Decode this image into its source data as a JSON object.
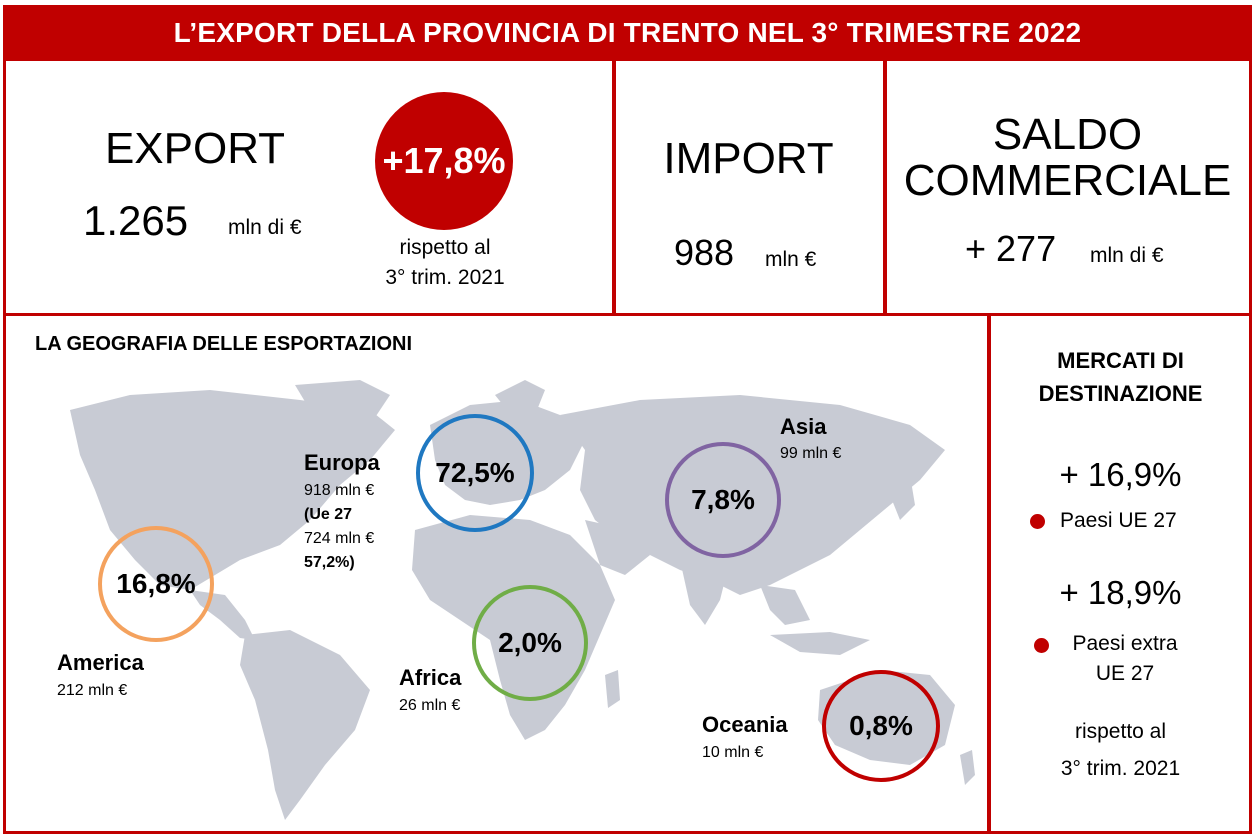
{
  "title": "L’EXPORT DELLA PROVINCIA DI TRENTO NEL 3° TRIMESTRE 2022",
  "export": {
    "label": "EXPORT",
    "value": "1.265",
    "unit": "mln di €",
    "change": "+17,8%",
    "comparison_line1": "rispetto al",
    "comparison_line2": "3° trim. 2021"
  },
  "import": {
    "label": "IMPORT",
    "value": "988",
    "unit": "mln €"
  },
  "saldo": {
    "label_line1": "SALDO",
    "label_line2": "COMMERCIALE",
    "value": "+ 277",
    "unit": "mln di €"
  },
  "geography": {
    "title": "LA GEOGRAFIA DELLE ESPORTAZIONI",
    "regions": {
      "america": {
        "name": "America",
        "value": "212 mln €",
        "share": "16,8%",
        "color": "#f4a25e"
      },
      "europa": {
        "name": "Europa",
        "value": "918 mln €",
        "ue_line1": "(Ue 27",
        "ue_line2": "724 mln €",
        "ue_line3": "57,2%)",
        "share": "72,5%",
        "color": "#1f78c1"
      },
      "asia": {
        "name": "Asia",
        "value": "99 mln €",
        "share": "7,8%",
        "color": "#8064a2"
      },
      "africa": {
        "name": "Africa",
        "value": "26 mln €",
        "share": "2,0%",
        "color": "#70ad47"
      },
      "oceania": {
        "name": "Oceania",
        "value": "10 mln €",
        "share": "0,8%",
        "color": "#c00000"
      }
    }
  },
  "markets": {
    "title_line1": "MERCATI DI",
    "title_line2": "DESTINAZIONE",
    "ue": {
      "change": "+ 16,9%",
      "label": "Paesi UE 27"
    },
    "extra_ue": {
      "change": "+ 18,9%",
      "label_line1": "Paesi extra",
      "label_line2": "UE 27"
    },
    "comparison_line1": "rispetto al",
    "comparison_line2": "3° trim. 2021"
  },
  "colors": {
    "accent": "#c00000",
    "map": "#c8cbd4"
  }
}
